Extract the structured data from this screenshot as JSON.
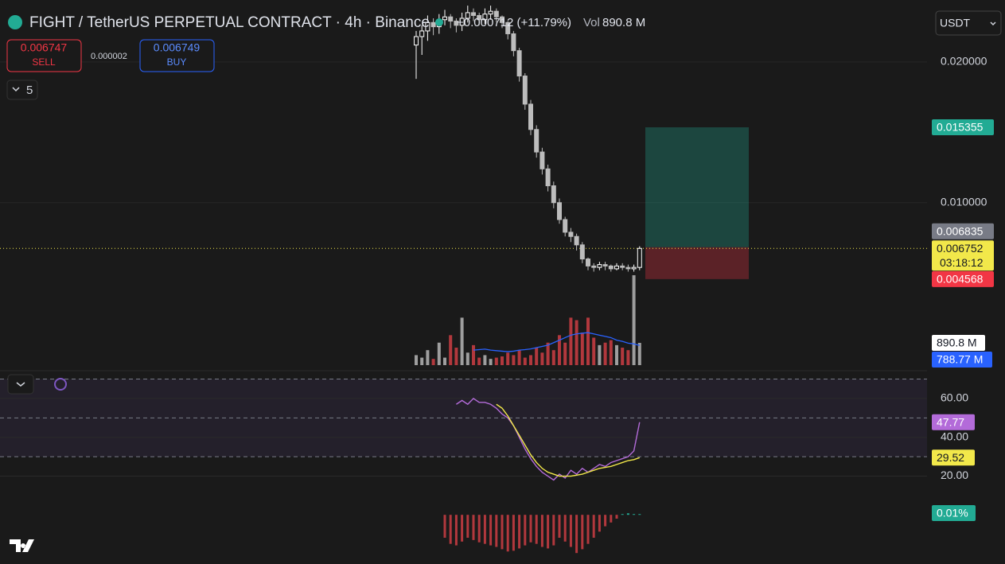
{
  "header": {
    "title": "FIGHT / TetherUS PERPETUAL CONTRACT · 4h · Binance",
    "change": "+0.000712 (+11.79%)",
    "volume_label": "Vol",
    "volume": "890.8 M"
  },
  "order_panel": {
    "sell_price": "0.006747",
    "sell": "SELL",
    "spread": "0.000002",
    "buy_price": "0.006749",
    "buy": "BUY"
  },
  "indicators_toggle": "5",
  "currency": "USDT",
  "chart_data": [
    {
      "type": "candlestick",
      "open": [
        0.0212,
        0.0218,
        0.0222,
        0.0228,
        0.0225,
        0.023,
        0.0232,
        0.0229,
        0.0226,
        0.0231,
        0.0235,
        0.0233,
        0.023,
        0.0234,
        0.0236,
        0.0232,
        0.0228,
        0.022,
        0.0208,
        0.019,
        0.017,
        0.0152,
        0.0136,
        0.0124,
        0.0112,
        0.01,
        0.0088,
        0.0079,
        0.0076,
        0.007,
        0.006,
        0.0055,
        0.0054,
        0.0056,
        0.0055,
        0.0053,
        0.0055,
        0.0054,
        0.0053,
        0.0054
      ],
      "high": [
        0.0222,
        0.0226,
        0.0233,
        0.0231,
        0.0234,
        0.0237,
        0.0234,
        0.0231,
        0.0235,
        0.024,
        0.0238,
        0.0235,
        0.0238,
        0.024,
        0.0238,
        0.0233,
        0.0229,
        0.0222,
        0.021,
        0.0192,
        0.0173,
        0.0155,
        0.0139,
        0.0127,
        0.0115,
        0.0103,
        0.009,
        0.0082,
        0.0078,
        0.0072,
        0.0061,
        0.0057,
        0.0058,
        0.0058,
        0.0056,
        0.0057,
        0.0057,
        0.0056,
        0.0056,
        0.0069
      ],
      "low": [
        0.0188,
        0.0205,
        0.0215,
        0.0219,
        0.022,
        0.0226,
        0.0224,
        0.0221,
        0.0222,
        0.0228,
        0.0229,
        0.0226,
        0.0227,
        0.023,
        0.0228,
        0.0224,
        0.0216,
        0.0204,
        0.0186,
        0.0166,
        0.0148,
        0.0132,
        0.012,
        0.0108,
        0.0096,
        0.0085,
        0.0076,
        0.0072,
        0.0066,
        0.0057,
        0.0052,
        0.0051,
        0.0052,
        0.0052,
        0.0051,
        0.0052,
        0.0052,
        0.0051,
        0.0051,
        0.0052
      ],
      "close": [
        0.0218,
        0.0222,
        0.0228,
        0.0225,
        0.023,
        0.0232,
        0.0229,
        0.0226,
        0.0231,
        0.0235,
        0.0233,
        0.023,
        0.0234,
        0.0236,
        0.0232,
        0.0228,
        0.022,
        0.0208,
        0.019,
        0.017,
        0.0152,
        0.0136,
        0.0124,
        0.0112,
        0.01,
        0.0088,
        0.0079,
        0.0076,
        0.007,
        0.006,
        0.0055,
        0.0054,
        0.0056,
        0.0055,
        0.0053,
        0.0055,
        0.0054,
        0.0053,
        0.0054,
        0.00675
      ],
      "up_color": "#ffffff",
      "down_color": "#bdbdbd",
      "ylim": [
        -0.0016,
        0.0244
      ],
      "yticks": [
        {
          "value": 0.02,
          "label": "0.020000"
        },
        {
          "value": 0.01,
          "label": "0.010000"
        }
      ],
      "grid": true,
      "position": {
        "target": {
          "value": 0.015355,
          "label": "0.015355"
        },
        "entry": {
          "value": 0.006835,
          "label": "0.006835"
        },
        "stop": {
          "value": 0.004568,
          "label": "0.004568"
        },
        "profit_color": "#22ab94",
        "loss_color": "#f23645"
      },
      "last_price": {
        "value": 0.006752,
        "label": "0.006752"
      },
      "countdown": "03:18:12"
    },
    {
      "type": "bar",
      "values": [
        400,
        300,
        600,
        250,
        900,
        300,
        1200,
        700,
        1900,
        500,
        800,
        300,
        400,
        250,
        300,
        350,
        500,
        400,
        600,
        300,
        400,
        700,
        500,
        900,
        600,
        1200,
        900,
        1900,
        1800,
        1300,
        1900,
        1100,
        800,
        900,
        1000,
        800,
        700,
        600,
        3600,
        890.8
      ],
      "ma": [
        null,
        null,
        null,
        null,
        null,
        null,
        null,
        null,
        null,
        null,
        600,
        620,
        640,
        600,
        580,
        560,
        540,
        560,
        600,
        620,
        650,
        700,
        750,
        800,
        900,
        1000,
        1100,
        1200,
        1250,
        1280,
        1300,
        1250,
        1200,
        1150,
        1100,
        1000,
        950,
        880,
        850,
        788.77
      ],
      "up_color": "#9e9e9e",
      "down_color": "#b2383d",
      "ma_color": "#2962ff",
      "ylim": [
        0,
        3800
      ],
      "last": {
        "value": 890.8,
        "label": "890.8 M"
      },
      "ma_last": {
        "value": 788.77,
        "label": "788.77 M"
      }
    },
    {
      "type": "line",
      "series": [
        {
          "values": [
            null,
            null,
            null,
            null,
            null,
            null,
            null,
            57,
            59,
            57,
            60,
            58,
            58,
            57,
            55,
            52,
            50,
            46,
            40,
            34,
            29,
            25,
            22,
            20,
            18,
            21,
            19,
            23,
            21,
            24,
            22,
            24,
            26,
            25,
            27,
            28,
            29,
            30,
            33,
            47.77
          ],
          "color": "#b36bd9"
        },
        {
          "values": [
            null,
            null,
            null,
            null,
            null,
            null,
            null,
            null,
            null,
            null,
            null,
            null,
            null,
            null,
            57,
            55,
            51,
            46,
            41,
            36,
            31,
            27,
            24,
            22,
            21,
            20,
            20,
            20,
            20.5,
            21,
            22,
            23,
            24,
            24.5,
            25,
            26,
            27,
            28,
            28.5,
            29.52
          ],
          "color": "#f2e84a"
        }
      ],
      "ylim": [
        11.2,
        69.4
      ],
      "yticks": [
        {
          "value": 60,
          "label": "60.00"
        },
        {
          "value": 40,
          "label": "40.00"
        },
        {
          "value": 20,
          "label": "20.00"
        }
      ],
      "bands": [
        70,
        50,
        30
      ]
    },
    {
      "type": "bar",
      "values": [
        null,
        null,
        null,
        null,
        null,
        -0.3,
        -0.38,
        -0.4,
        -0.35,
        -0.3,
        -0.33,
        -0.36,
        -0.38,
        -0.4,
        -0.42,
        -0.45,
        -0.48,
        -0.47,
        -0.44,
        -0.4,
        -0.36,
        -0.38,
        -0.42,
        -0.44,
        -0.4,
        -0.3,
        -0.35,
        -0.42,
        -0.5,
        -0.45,
        -0.38,
        -0.3,
        -0.22,
        -0.15,
        -0.1,
        -0.05,
        0.01,
        0.02,
        0.01,
        0.01
      ],
      "ylim": [
        -0.55,
        0.1
      ],
      "neg_color": "#b2383d",
      "pos_color": "#22ab94",
      "tag": {
        "value": 0.01,
        "label": "0.01%"
      }
    }
  ]
}
